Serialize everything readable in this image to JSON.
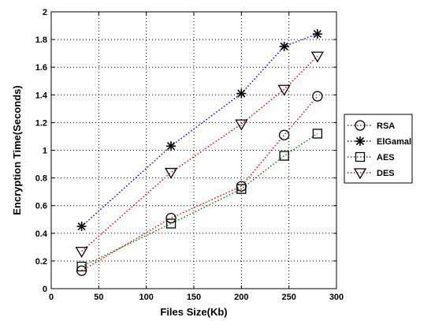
{
  "chart_data": {
    "type": "line",
    "xlabel": "Files Size(Kb)",
    "ylabel": "Encryption Time(Seconds)",
    "xlim": [
      0,
      300
    ],
    "ylim": [
      0,
      2
    ],
    "xticks": [
      0,
      50,
      100,
      150,
      200,
      250,
      300
    ],
    "yticks": [
      0,
      0.2,
      0.4,
      0.6,
      0.8,
      1,
      1.2,
      1.4,
      1.6,
      1.8,
      2
    ],
    "ytick_labels": [
      "0",
      "0.2",
      "0.4",
      "0.6",
      "0.8",
      "1",
      "1.2",
      "1.4",
      "1.6",
      "1.8",
      "2"
    ],
    "grid": true,
    "legend_position": "right",
    "series": [
      {
        "name": "RSA",
        "color": "#ff0000",
        "marker": "circle",
        "x": [
          32,
          126,
          200,
          245,
          280
        ],
        "y": [
          0.13,
          0.51,
          0.74,
          1.11,
          1.39
        ]
      },
      {
        "name": "ElGamal",
        "color": "#0000ff",
        "marker": "asterisk",
        "x": [
          32,
          126,
          200,
          245,
          280
        ],
        "y": [
          0.45,
          1.03,
          1.41,
          1.75,
          1.84
        ]
      },
      {
        "name": "AES",
        "color": "#008000",
        "marker": "square",
        "x": [
          32,
          126,
          200,
          245,
          280
        ],
        "y": [
          0.16,
          0.47,
          0.72,
          0.96,
          1.12
        ]
      },
      {
        "name": "DES",
        "color": "#ff0000",
        "marker": "triangle-down",
        "x": [
          32,
          126,
          200,
          245,
          280
        ],
        "y": [
          0.27,
          0.84,
          1.19,
          1.44,
          1.68
        ]
      }
    ]
  }
}
